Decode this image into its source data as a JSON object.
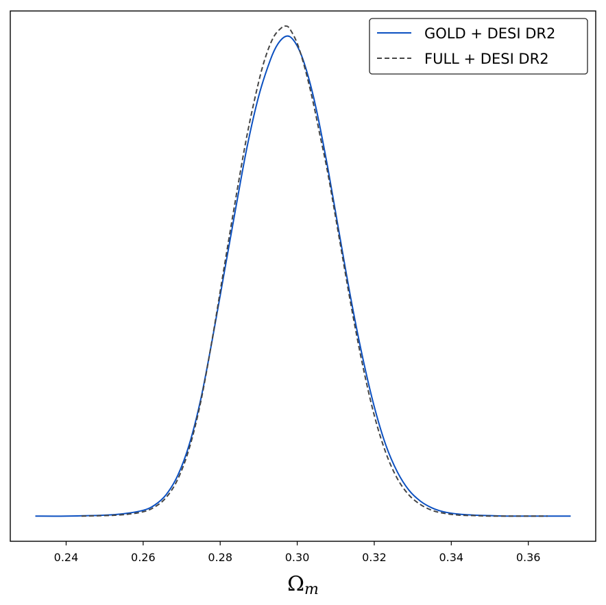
{
  "chart_data": {
    "type": "line",
    "xlabel": "Ω_m",
    "xlabel_main": "Ω",
    "xlabel_sub": "m",
    "xlim": [
      0.2255,
      0.3775
    ],
    "ylim": [
      -0.0525,
      1.0525
    ],
    "x_ticks": [
      0.24,
      0.26,
      0.28,
      0.3,
      0.32,
      0.34,
      0.36
    ],
    "x_tick_labels": [
      "0.24",
      "0.26",
      "0.28",
      "0.30",
      "0.32",
      "0.34",
      "0.36"
    ],
    "y_ticks_visible": false,
    "grid": false,
    "legend_position": "top-right",
    "series": [
      {
        "name": "GOLD + DESI DR2",
        "color": "#0a4fc0",
        "line_style": "solid",
        "x": [
          0.232,
          0.24,
          0.25,
          0.255,
          0.26,
          0.263,
          0.266,
          0.269,
          0.272,
          0.275,
          0.278,
          0.281,
          0.284,
          0.287,
          0.29,
          0.293,
          0.295,
          0.2972,
          0.299,
          0.301,
          0.303,
          0.305,
          0.308,
          0.311,
          0.314,
          0.317,
          0.32,
          0.323,
          0.326,
          0.329,
          0.332,
          0.335,
          0.338,
          0.342,
          0.346,
          0.35,
          0.355,
          0.36,
          0.365,
          0.371
        ],
        "y": [
          0.0,
          0.0,
          0.002,
          0.005,
          0.012,
          0.023,
          0.045,
          0.085,
          0.15,
          0.245,
          0.37,
          0.505,
          0.64,
          0.77,
          0.875,
          0.95,
          0.984,
          1.0,
          0.992,
          0.962,
          0.912,
          0.846,
          0.723,
          0.585,
          0.45,
          0.33,
          0.228,
          0.148,
          0.092,
          0.054,
          0.031,
          0.017,
          0.009,
          0.004,
          0.002,
          0.001,
          0.0,
          0.0,
          0.0,
          0.0
        ]
      },
      {
        "name": "FULL + DESI DR2",
        "color": "#444444",
        "line_style": "dashed",
        "x": [
          0.244,
          0.25,
          0.255,
          0.26,
          0.263,
          0.266,
          0.269,
          0.272,
          0.275,
          0.278,
          0.281,
          0.284,
          0.287,
          0.29,
          0.292,
          0.294,
          0.296,
          0.297,
          0.298,
          0.3,
          0.302,
          0.304,
          0.306,
          0.308,
          0.311,
          0.314,
          0.317,
          0.32,
          0.323,
          0.326,
          0.329,
          0.332,
          0.335,
          0.338,
          0.342,
          0.346,
          0.35,
          0.355,
          0.36,
          0.365
        ],
        "y": [
          0.0,
          0.001,
          0.003,
          0.009,
          0.019,
          0.039,
          0.077,
          0.142,
          0.24,
          0.372,
          0.517,
          0.66,
          0.795,
          0.905,
          0.962,
          1.0,
          1.018,
          1.021,
          1.016,
          0.985,
          0.933,
          0.867,
          0.79,
          0.712,
          0.575,
          0.438,
          0.314,
          0.21,
          0.132,
          0.078,
          0.044,
          0.024,
          0.012,
          0.006,
          0.002,
          0.001,
          0.0,
          0.0,
          0.0,
          0.0
        ]
      }
    ]
  }
}
